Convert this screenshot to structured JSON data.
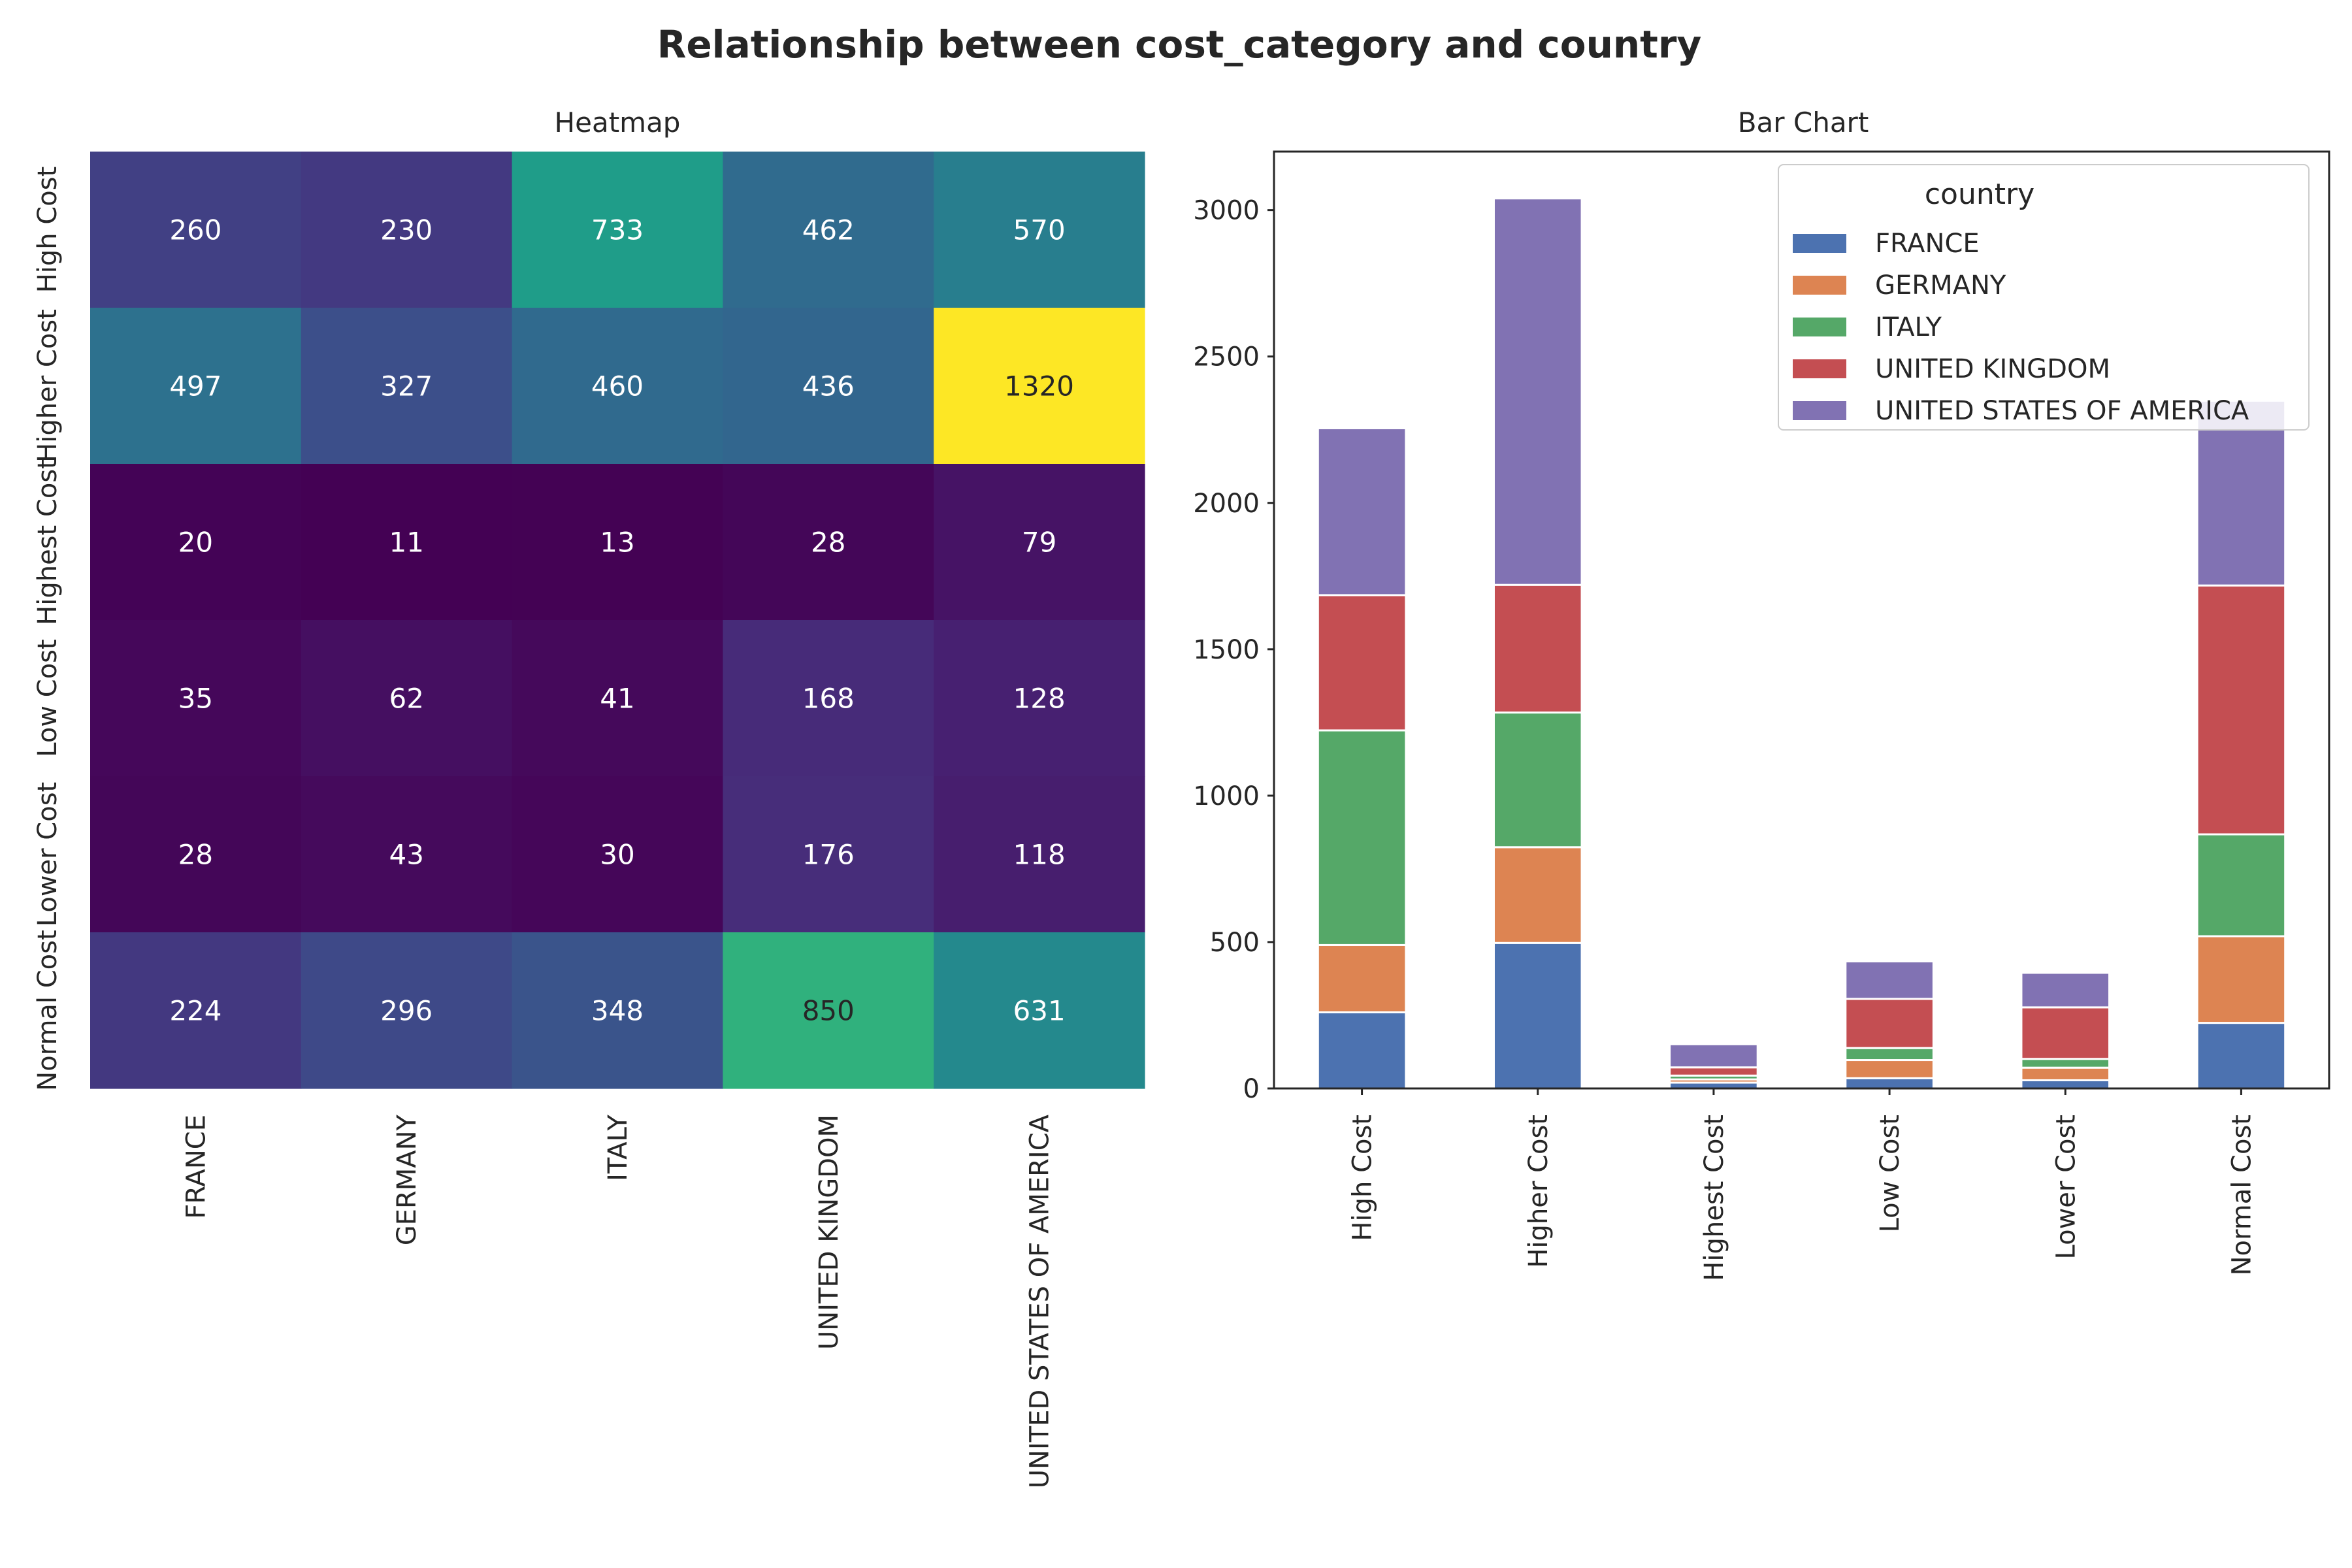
{
  "title": "Relationship between cost_category and country",
  "chart_data": [
    {
      "type": "heatmap",
      "title": "Heatmap",
      "xlabel": "",
      "ylabel": "",
      "rows": [
        "High Cost",
        "Higher Cost",
        "Highest Cost",
        "Low Cost",
        "Lower Cost",
        "Normal Cost"
      ],
      "columns": [
        "FRANCE",
        "GERMANY",
        "ITALY",
        "UNITED KINGDOM",
        "UNITED STATES OF AMERICA"
      ],
      "values": [
        [
          260,
          230,
          733,
          462,
          570
        ],
        [
          497,
          327,
          460,
          436,
          1320
        ],
        [
          20,
          11,
          13,
          28,
          79
        ],
        [
          35,
          62,
          41,
          168,
          128
        ],
        [
          28,
          43,
          30,
          176,
          118
        ],
        [
          224,
          296,
          348,
          850,
          631
        ]
      ],
      "colormap": "viridis",
      "annotated": true
    },
    {
      "type": "bar",
      "stacked": true,
      "title": "Bar Chart",
      "xlabel": "",
      "ylabel": "",
      "categories": [
        "High Cost",
        "Higher Cost",
        "Highest Cost",
        "Low Cost",
        "Lower Cost",
        "Normal Cost"
      ],
      "series": [
        {
          "name": "FRANCE",
          "color": "#4c72b0",
          "values": [
            260,
            497,
            20,
            35,
            28,
            224
          ]
        },
        {
          "name": "GERMANY",
          "color": "#dd8452",
          "values": [
            230,
            327,
            11,
            62,
            43,
            296
          ]
        },
        {
          "name": "ITALY",
          "color": "#55a868",
          "values": [
            733,
            460,
            13,
            41,
            30,
            348
          ]
        },
        {
          "name": "UNITED KINGDOM",
          "color": "#c44e52",
          "values": [
            462,
            436,
            28,
            168,
            176,
            850
          ]
        },
        {
          "name": "UNITED STATES OF AMERICA",
          "color": "#8172b3",
          "values": [
            570,
            1320,
            79,
            128,
            118,
            631
          ]
        }
      ],
      "ylim": [
        0,
        3200
      ],
      "yticks": [
        0,
        500,
        1000,
        1500,
        2000,
        2500,
        3000
      ],
      "legend": {
        "title": "country",
        "placement": "top-right"
      },
      "grid": false
    }
  ]
}
